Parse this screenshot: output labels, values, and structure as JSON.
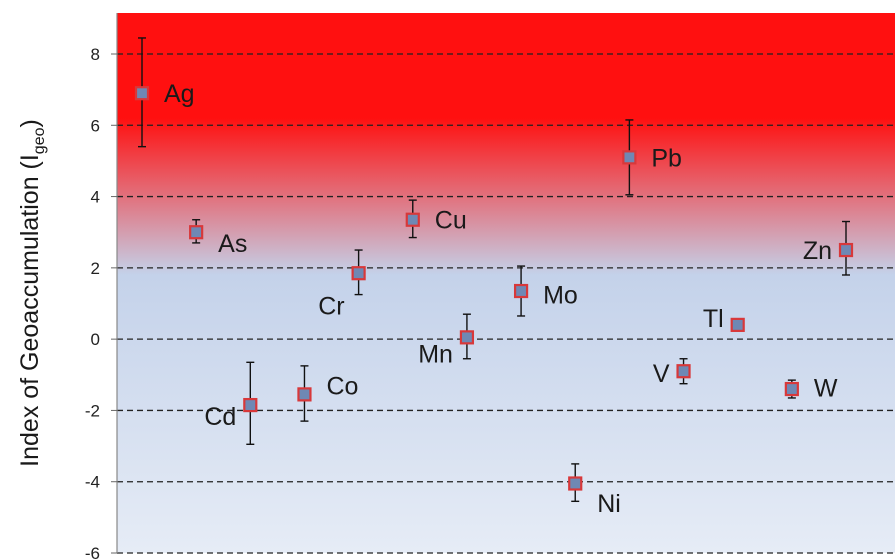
{
  "chart_data": {
    "type": "scatter",
    "title": "",
    "ylabel": {
      "main": "Index of Geoaccumulation (I",
      "sub": "geo",
      "close": ")"
    },
    "ylim": [
      -6,
      9
    ],
    "yticks": [
      "8",
      "6",
      "4",
      "2",
      "0",
      "-2",
      "-4",
      "-6"
    ],
    "grid": "horizontal dashed",
    "background": {
      "top_color": "#ff1010",
      "mid_color": "#c4d2ea",
      "bottom_color": "#e6ecf6",
      "transition_start": 4,
      "transition_end": 2
    },
    "marker_fill": "#6f88b4",
    "marker_edge": "#d8383a",
    "points": [
      {
        "label": "Ag",
        "value": 6.9,
        "low": 5.4,
        "high": 8.45,
        "label_side": "right",
        "label_dy": 0
      },
      {
        "label": "As",
        "value": 3.0,
        "low": 2.7,
        "high": 3.35,
        "label_side": "right",
        "label_dy": -0.3
      },
      {
        "label": "Cd",
        "value": -1.85,
        "low": -2.95,
        "high": -0.65,
        "label_side": "left",
        "label_dy": -0.3
      },
      {
        "label": "Co",
        "value": -1.55,
        "low": -2.3,
        "high": -0.75,
        "label_side": "right",
        "label_dy": 0.25
      },
      {
        "label": "Cr",
        "value": 1.85,
        "low": 1.25,
        "high": 2.5,
        "label_side": "left",
        "label_dy": -0.9
      },
      {
        "label": "Cu",
        "value": 3.35,
        "low": 2.85,
        "high": 3.9,
        "label_side": "right",
        "label_dy": 0
      },
      {
        "label": "Mn",
        "value": 0.05,
        "low": -0.55,
        "high": 0.7,
        "label_side": "left",
        "label_dy": -0.45
      },
      {
        "label": "Mo",
        "value": 1.35,
        "low": 0.65,
        "high": 2.05,
        "label_side": "right",
        "label_dy": -0.1
      },
      {
        "label": "Ni",
        "value": -4.05,
        "low": -4.55,
        "high": -3.5,
        "label_side": "right",
        "label_dy": -0.55
      },
      {
        "label": "Pb",
        "value": 5.1,
        "low": 4.05,
        "high": 6.15,
        "label_side": "right",
        "label_dy": 0
      },
      {
        "label": "V",
        "value": -0.9,
        "low": -1.25,
        "high": -0.55,
        "label_side": "left",
        "label_dy": -0.05
      },
      {
        "label": "Tl",
        "value": 0.4,
        "low": 0.3,
        "high": 0.5,
        "label_side": "left",
        "label_dy": 0.2
      },
      {
        "label": "W",
        "value": -1.4,
        "low": -1.65,
        "high": -1.15,
        "label_side": "right",
        "label_dy": 0.05
      },
      {
        "label": "Zn",
        "value": 2.5,
        "low": 1.8,
        "high": 3.3,
        "label_side": "left",
        "label_dy": 0
      }
    ]
  }
}
